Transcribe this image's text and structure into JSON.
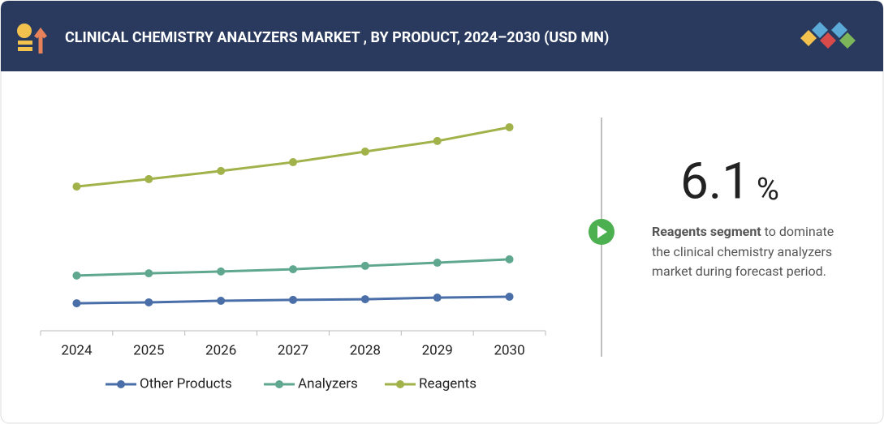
{
  "header": {
    "title": "CLINICAL CHEMISTRY ANALYZERS MARKET , BY PRODUCT, 2024–2030 (USD MN)"
  },
  "chart_data": {
    "type": "line",
    "categories": [
      "2024",
      "2025",
      "2026",
      "2027",
      "2028",
      "2029",
      "2030"
    ],
    "ylim": [
      0,
      100
    ],
    "series": [
      {
        "name": "Other Products",
        "color": "#4a6fa8",
        "values": [
          12.2,
          12.6,
          13.3,
          13.7,
          14.0,
          14.7,
          15.1
        ]
      },
      {
        "name": "Analyzers",
        "color": "#5fa88f",
        "values": [
          24.5,
          25.5,
          26.3,
          27.3,
          28.8,
          30.2,
          31.7
        ]
      },
      {
        "name": "Reagents",
        "color": "#a2b24a",
        "values": [
          64.0,
          67.3,
          70.9,
          74.8,
          79.5,
          84.2,
          90.3
        ]
      }
    ]
  },
  "highlight": {
    "value": 6.1,
    "unit": "%",
    "bold": "Reagents segment",
    "text": " to dominate the clinical chemistry analyzers market during forecast period."
  }
}
